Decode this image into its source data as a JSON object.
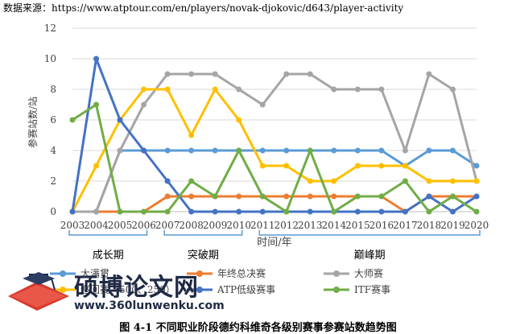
{
  "source_note": "数据来源：https://www.atptour.com/en/players/novak-djokovic/d643/player-activity",
  "caption": "图 4-1  不同职业阶段德约科维奇各级别赛事参赛站数趋势图",
  "watermark": {
    "text": "硕博论文网",
    "url": "www.360lunwenku.com"
  },
  "colors": {
    "grand_slam": "#5b9bd5",
    "finals": "#ed7d31",
    "masters": "#a5a5a5",
    "atp500_250": "#ffc000",
    "atp_low": "#4472c4",
    "itf": "#70ad47",
    "grid": "#d9d9d9",
    "axis": "#bfbfbf",
    "bracket": "#5b9bd5"
  },
  "chart_data": {
    "type": "line",
    "title": "",
    "xlabel": "时间/年",
    "ylabel": "参赛站数/站",
    "ylim": [
      0,
      12
    ],
    "yticks": [
      0,
      2,
      4,
      6,
      8,
      10,
      12
    ],
    "grid": true,
    "legend_position": "bottom",
    "x": [
      "2003",
      "2004",
      "2005",
      "2006",
      "2007",
      "2008",
      "2009",
      "2010",
      "2011",
      "2012",
      "2013",
      "2014",
      "2015",
      "2016",
      "2017",
      "2018",
      "2019",
      "2020"
    ],
    "series": [
      {
        "name": "大满贯",
        "color_key": "grand_slam",
        "values": [
          0,
          0,
          4,
          4,
          4,
          4,
          4,
          4,
          4,
          4,
          4,
          4,
          4,
          4,
          3,
          4,
          4,
          3
        ]
      },
      {
        "name": "年终总决赛",
        "color_key": "finals",
        "values": [
          0,
          0,
          0,
          0,
          1,
          1,
          1,
          1,
          1,
          1,
          1,
          1,
          1,
          1,
          0,
          1,
          1,
          1
        ]
      },
      {
        "name": "大师赛",
        "color_key": "masters",
        "values": [
          0,
          0,
          4,
          7,
          9,
          9,
          9,
          8,
          7,
          9,
          9,
          8,
          8,
          8,
          4,
          9,
          8,
          2
        ]
      },
      {
        "name": "巡回赛（500、250）",
        "color_key": "atp500_250",
        "values": [
          0,
          3,
          6,
          8,
          8,
          5,
          8,
          6,
          3,
          3,
          2,
          2,
          3,
          3,
          3,
          2,
          2,
          2
        ]
      },
      {
        "name": "ATP低级赛事",
        "color_key": "atp_low",
        "values": [
          0,
          10,
          6,
          4,
          2,
          0,
          0,
          0,
          0,
          0,
          0,
          0,
          0,
          0,
          0,
          1,
          0,
          1
        ]
      },
      {
        "name": "ITF赛事",
        "color_key": "itf",
        "values": [
          6,
          7,
          0,
          0,
          0,
          2,
          1,
          4,
          1,
          0,
          4,
          0,
          1,
          1,
          2,
          0,
          1,
          0
        ]
      }
    ],
    "phases": [
      {
        "label": "成长期",
        "from": "2003",
        "to": "2006"
      },
      {
        "label": "突破期",
        "from": "2007",
        "to": "2010"
      },
      {
        "label": "巅峰期",
        "from": "2011",
        "to": "2020"
      }
    ]
  }
}
